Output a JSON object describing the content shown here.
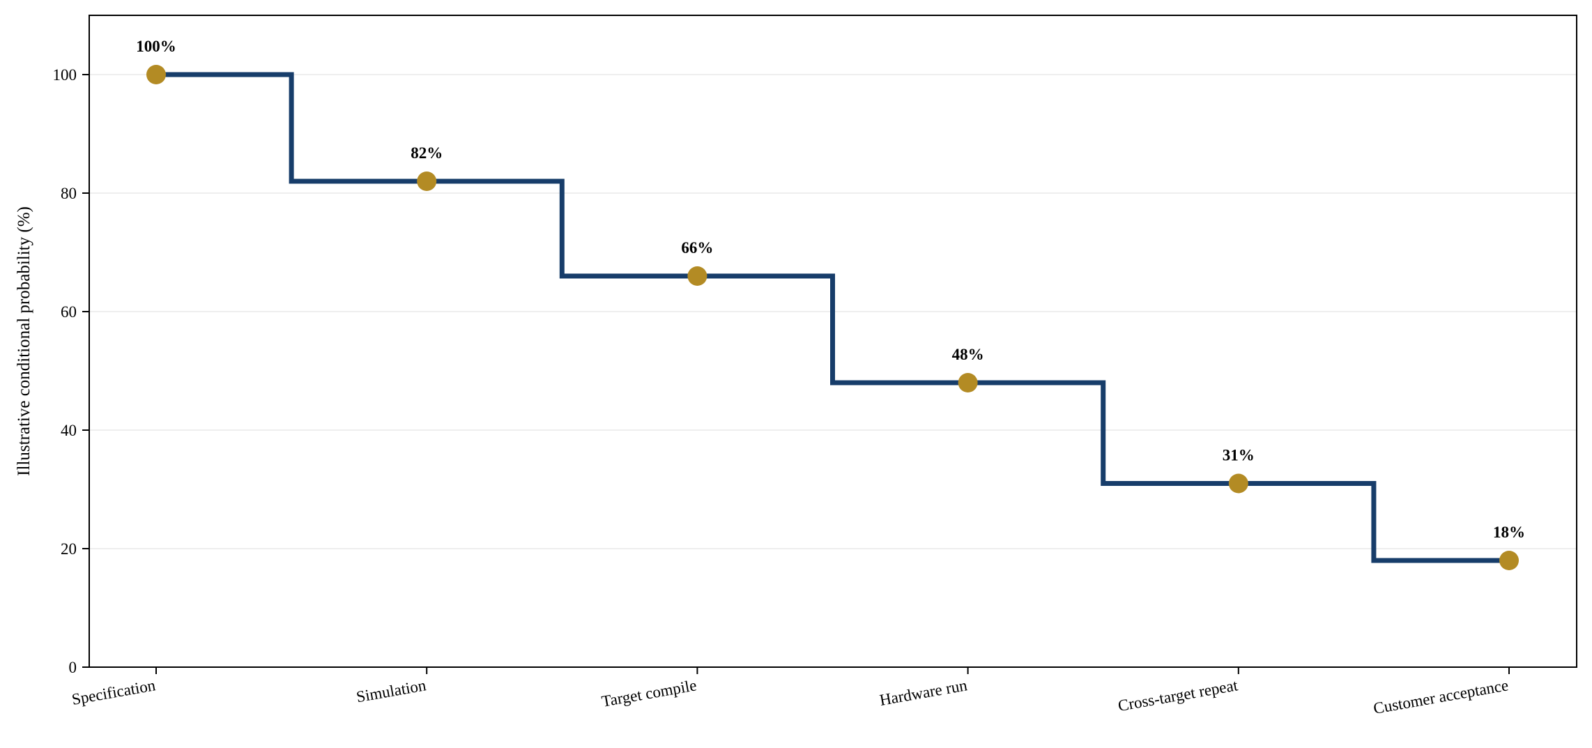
{
  "chart_data": {
    "type": "line",
    "step": "mid",
    "categories": [
      "Specification",
      "Simulation",
      "Target compile",
      "Hardware run",
      "Cross-target repeat",
      "Customer acceptance"
    ],
    "values": [
      100,
      82,
      66,
      48,
      31,
      18
    ],
    "data_labels": [
      "100%",
      "82%",
      "66%",
      "48%",
      "31%",
      "18%"
    ],
    "title": "",
    "xlabel": "",
    "ylabel": "Illustrative conditional probability (%)",
    "ylim": [
      0,
      110
    ],
    "yticks": [
      0,
      20,
      40,
      60,
      80,
      100
    ],
    "ytick_labels": [
      "0",
      "20",
      "40",
      "60",
      "80",
      "100"
    ],
    "grid": "horizontal",
    "legend": "none",
    "colors": {
      "line": "#173d6a",
      "marker": "#b38b24",
      "grid": "#e8e8e8",
      "axis": "#000000"
    }
  }
}
